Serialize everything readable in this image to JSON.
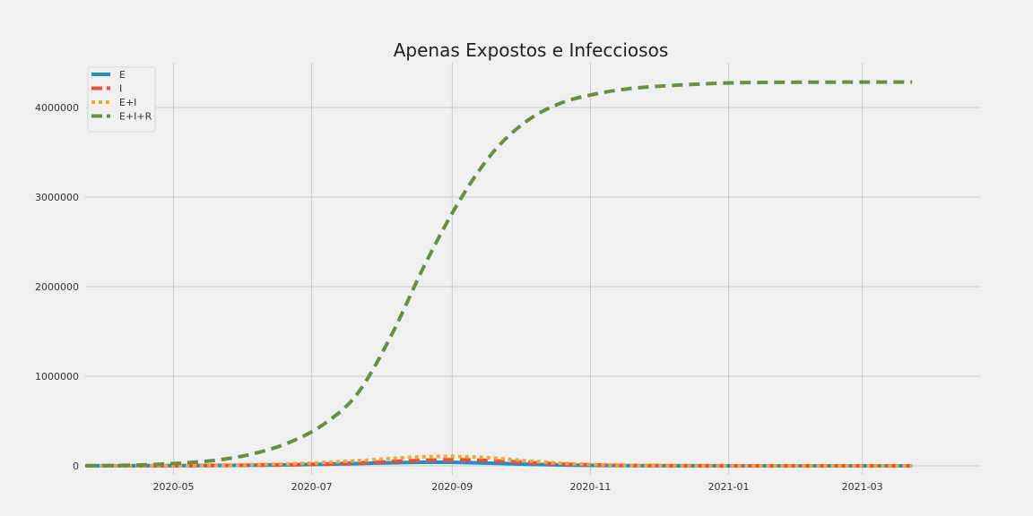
{
  "chart_data": {
    "type": "line",
    "title": "Apenas Expostos e Infecciosos",
    "xlabel": "",
    "ylabel": "",
    "x_range": [
      "2020-03-23",
      "2021-04-22"
    ],
    "ylim": [
      -100000,
      4500000
    ],
    "x_ticks": [
      "2020-05",
      "2020-07",
      "2020-09",
      "2020-11",
      "2021-01",
      "2021-03"
    ],
    "y_ticks": [
      "0",
      "1000000",
      "2000000",
      "3000000",
      "4000000"
    ],
    "grid": true,
    "legend_position": "top-left",
    "x": [
      "2020-03-23",
      "2020-04-07",
      "2020-04-22",
      "2020-05-07",
      "2020-05-22",
      "2020-06-06",
      "2020-06-21",
      "2020-07-06",
      "2020-07-21",
      "2020-08-05",
      "2020-08-20",
      "2020-09-04",
      "2020-09-19",
      "2020-10-04",
      "2020-10-19",
      "2020-11-03",
      "2020-11-18",
      "2020-12-03",
      "2020-12-18",
      "2021-01-02",
      "2021-01-17",
      "2021-02-01",
      "2021-02-16",
      "2021-03-03",
      "2021-03-18",
      "2021-03-23"
    ],
    "series": [
      {
        "name": "E",
        "color": "#1f8fc8",
        "dash": "solid",
        "values": [
          500,
          800,
          1500,
          2800,
          4500,
          7000,
          11000,
          17000,
          25000,
          34000,
          40000,
          38000,
          29000,
          18000,
          9500,
          4500,
          2000,
          900,
          400,
          200,
          100,
          50,
          30,
          20,
          10,
          10
        ]
      },
      {
        "name": "I",
        "color": "#e8503a",
        "dash": "dash",
        "values": [
          300,
          600,
          1200,
          2300,
          4000,
          7000,
          12000,
          20000,
          32000,
          48000,
          62000,
          67000,
          58000,
          38000,
          20000,
          9500,
          4500,
          2000,
          900,
          400,
          200,
          100,
          50,
          30,
          20,
          20
        ]
      },
      {
        "name": "E+I",
        "color": "#f0a838",
        "dash": "dot",
        "values": [
          800,
          1400,
          2700,
          5100,
          8500,
          14000,
          23000,
          37000,
          57000,
          82000,
          102000,
          105000,
          87000,
          56000,
          29500,
          14000,
          6500,
          2900,
          1300,
          600,
          300,
          150,
          80,
          50,
          30,
          30
        ]
      },
      {
        "name": "E+I+R",
        "color": "#6b8e46",
        "dash": "dash",
        "values": [
          1000,
          5000,
          15000,
          35000,
          70000,
          140000,
          260000,
          460000,
          800000,
          1450000,
          2250000,
          2950000,
          3500000,
          3850000,
          4050000,
          4150000,
          4210000,
          4240000,
          4260000,
          4275000,
          4280000,
          4282000,
          4283000,
          4284000,
          4284000,
          4284000
        ]
      }
    ]
  }
}
